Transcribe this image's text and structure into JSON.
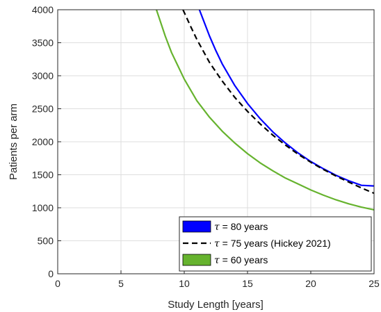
{
  "chart_data": {
    "type": "line",
    "title": "",
    "xlabel": "Study Length [years]",
    "ylabel": "Patients per arm",
    "xlim": [
      0,
      25
    ],
    "ylim": [
      0,
      4000
    ],
    "xticks": [
      0,
      5,
      10,
      15,
      20,
      25
    ],
    "yticks": [
      0,
      500,
      1000,
      1500,
      2000,
      2500,
      3000,
      3500,
      4000
    ],
    "grid": true,
    "legend_position": "bottom-right",
    "series": [
      {
        "name": "τ = 80 years",
        "legend_symbol": "τ",
        "legend_text": " = 80 years",
        "color": "#0000ff",
        "style": "solid",
        "legend_marker": "patch",
        "x": [
          11.2,
          11.5,
          12,
          12.5,
          13,
          14,
          15,
          16,
          17,
          18,
          19,
          20,
          21,
          22,
          23,
          24,
          25
        ],
        "y": [
          4000,
          3850,
          3600,
          3380,
          3180,
          2850,
          2580,
          2350,
          2150,
          1980,
          1830,
          1700,
          1590,
          1490,
          1410,
          1340,
          1330
        ]
      },
      {
        "name": "τ = 75 years (Hickey 2021)",
        "legend_symbol": "τ",
        "legend_text": " = 75 years (Hickey 2021)",
        "color": "#000000",
        "style": "dashed",
        "legend_marker": "line",
        "x": [
          9.9,
          10.5,
          11,
          12,
          13,
          14,
          15,
          16,
          17,
          18,
          19,
          20,
          21,
          22,
          23,
          24,
          25
        ],
        "y": [
          4000,
          3750,
          3550,
          3200,
          2920,
          2670,
          2460,
          2270,
          2100,
          1950,
          1810,
          1690,
          1580,
          1480,
          1390,
          1300,
          1220
        ]
      },
      {
        "name": "τ = 60 years",
        "legend_symbol": "τ",
        "legend_text": " = 60 years",
        "color": "#66b32e",
        "style": "solid",
        "legend_marker": "patch",
        "x": [
          7.8,
          8.5,
          9,
          10,
          11,
          12,
          13,
          14,
          15,
          16,
          17,
          18,
          19,
          20,
          21,
          22,
          23,
          24,
          25
        ],
        "y": [
          4000,
          3600,
          3350,
          2950,
          2620,
          2370,
          2160,
          1980,
          1820,
          1680,
          1560,
          1450,
          1360,
          1270,
          1190,
          1120,
          1060,
          1010,
          970
        ]
      }
    ]
  }
}
